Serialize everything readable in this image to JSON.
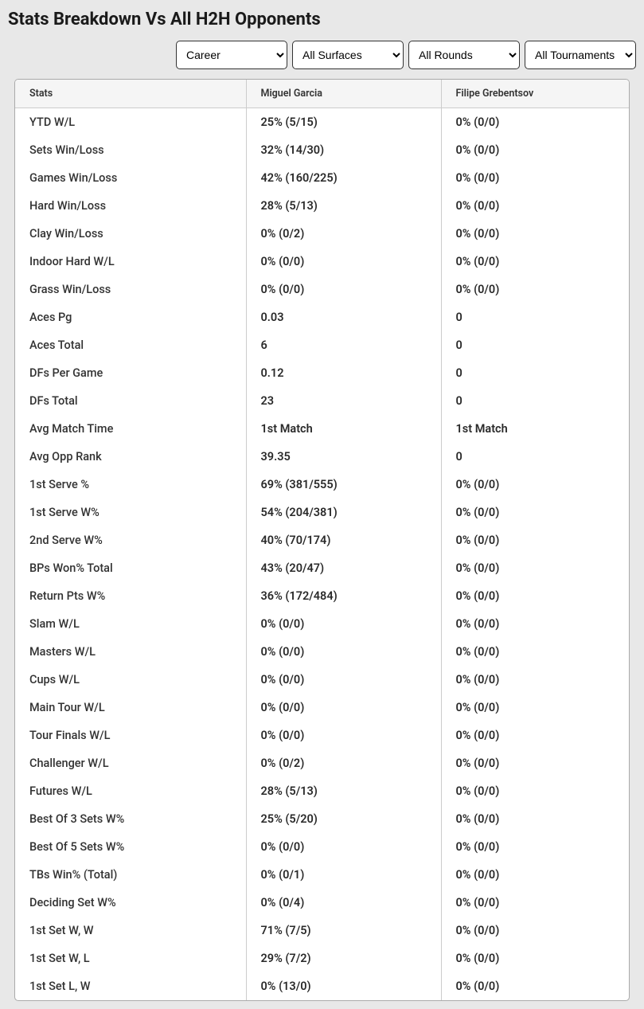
{
  "title": "Stats Breakdown Vs All H2H Opponents",
  "filters": {
    "career": "Career",
    "surfaces": "All Surfaces",
    "rounds": "All Rounds",
    "tournaments": "All Tournaments"
  },
  "table": {
    "headers": {
      "stats": "Stats",
      "p1": "Miguel Garcia",
      "p2": "Filipe Grebentsov"
    },
    "rows": [
      {
        "stat": "YTD W/L",
        "p1": "25% (5/15)",
        "p2": "0% (0/0)"
      },
      {
        "stat": "Sets Win/Loss",
        "p1": "32% (14/30)",
        "p2": "0% (0/0)"
      },
      {
        "stat": "Games Win/Loss",
        "p1": "42% (160/225)",
        "p2": "0% (0/0)"
      },
      {
        "stat": "Hard Win/Loss",
        "p1": "28% (5/13)",
        "p2": "0% (0/0)"
      },
      {
        "stat": "Clay Win/Loss",
        "p1": "0% (0/2)",
        "p2": "0% (0/0)"
      },
      {
        "stat": "Indoor Hard W/L",
        "p1": "0% (0/0)",
        "p2": "0% (0/0)"
      },
      {
        "stat": "Grass Win/Loss",
        "p1": "0% (0/0)",
        "p2": "0% (0/0)"
      },
      {
        "stat": "Aces Pg",
        "p1": "0.03",
        "p2": "0"
      },
      {
        "stat": "Aces Total",
        "p1": "6",
        "p2": "0"
      },
      {
        "stat": "DFs Per Game",
        "p1": "0.12",
        "p2": "0"
      },
      {
        "stat": "DFs Total",
        "p1": "23",
        "p2": "0"
      },
      {
        "stat": "Avg Match Time",
        "p1": "1st Match",
        "p2": "1st Match"
      },
      {
        "stat": "Avg Opp Rank",
        "p1": "39.35",
        "p2": "0"
      },
      {
        "stat": "1st Serve %",
        "p1": "69% (381/555)",
        "p2": "0% (0/0)"
      },
      {
        "stat": "1st Serve W%",
        "p1": "54% (204/381)",
        "p2": "0% (0/0)"
      },
      {
        "stat": "2nd Serve W%",
        "p1": "40% (70/174)",
        "p2": "0% (0/0)"
      },
      {
        "stat": "BPs Won% Total",
        "p1": "43% (20/47)",
        "p2": "0% (0/0)"
      },
      {
        "stat": "Return Pts W%",
        "p1": "36% (172/484)",
        "p2": "0% (0/0)"
      },
      {
        "stat": "Slam W/L",
        "p1": "0% (0/0)",
        "p2": "0% (0/0)"
      },
      {
        "stat": "Masters W/L",
        "p1": "0% (0/0)",
        "p2": "0% (0/0)"
      },
      {
        "stat": "Cups W/L",
        "p1": "0% (0/0)",
        "p2": "0% (0/0)"
      },
      {
        "stat": "Main Tour W/L",
        "p1": "0% (0/0)",
        "p2": "0% (0/0)"
      },
      {
        "stat": "Tour Finals W/L",
        "p1": "0% (0/0)",
        "p2": "0% (0/0)"
      },
      {
        "stat": "Challenger W/L",
        "p1": "0% (0/2)",
        "p2": "0% (0/0)"
      },
      {
        "stat": "Futures W/L",
        "p1": "28% (5/13)",
        "p2": "0% (0/0)"
      },
      {
        "stat": "Best Of 3 Sets W%",
        "p1": "25% (5/20)",
        "p2": "0% (0/0)"
      },
      {
        "stat": "Best Of 5 Sets W%",
        "p1": "0% (0/0)",
        "p2": "0% (0/0)"
      },
      {
        "stat": "TBs Win% (Total)",
        "p1": "0% (0/1)",
        "p2": "0% (0/0)"
      },
      {
        "stat": "Deciding Set W%",
        "p1": "0% (0/4)",
        "p2": "0% (0/0)"
      },
      {
        "stat": "1st Set W, W",
        "p1": "71% (7/5)",
        "p2": "0% (0/0)"
      },
      {
        "stat": "1st Set W, L",
        "p1": "29% (7/2)",
        "p2": "0% (0/0)"
      },
      {
        "stat": "1st Set L, W",
        "p1": "0% (13/0)",
        "p2": "0% (0/0)"
      }
    ]
  }
}
